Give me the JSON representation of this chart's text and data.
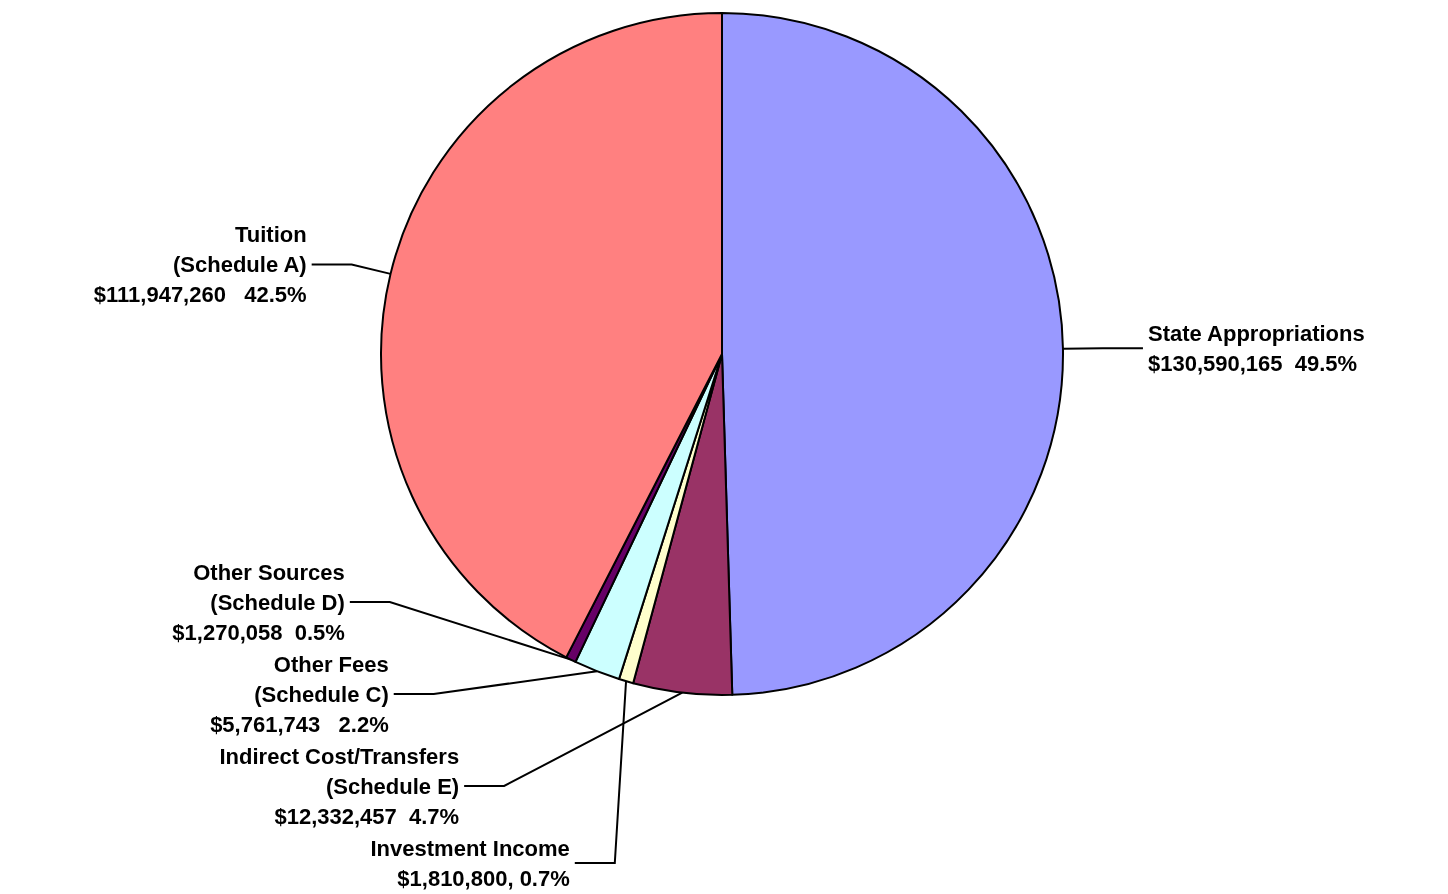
{
  "chart_data": {
    "type": "pie",
    "categories": [
      "State Appropriations",
      "Indirect Cost/Transfers\n(Schedule E)",
      "Investment Income",
      "Other Fees\n(Schedule C)",
      "Other Sources\n(Schedule D)",
      "Tuition\n(Schedule A)"
    ],
    "values": [
      130590165,
      12332457,
      1810800,
      5761743,
      1270058,
      111947260
    ],
    "value_labels": [
      "$130,590,165  49.5%",
      "$12,332,457  4.7%",
      "$1,810,800, 0.7%",
      "$5,761,743   2.2%",
      "$1,270,058  0.5%",
      "$111,947,260   42.5%"
    ],
    "colors": [
      "#9999ff",
      "#993366",
      "#ffffcc",
      "#ccffff",
      "#660066",
      "#ff8080"
    ],
    "legend": false
  }
}
